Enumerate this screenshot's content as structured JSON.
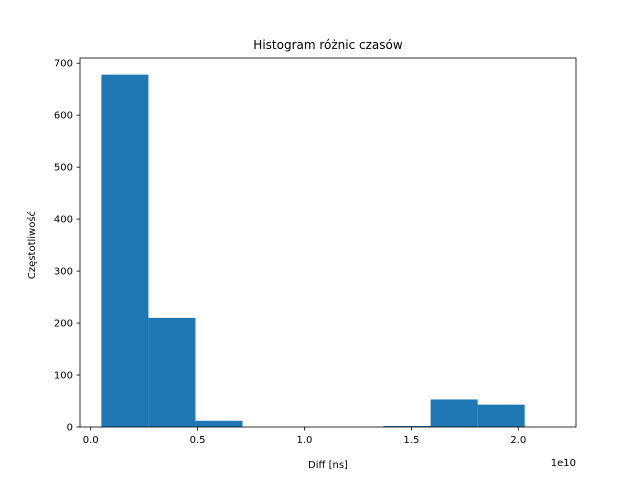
{
  "chart_data": {
    "type": "bar",
    "title": "Histogram różnic czasów",
    "xlabel": "Diff [ns]",
    "ylabel": "Częstotliwość",
    "x_offset_label": "1e10",
    "xlim": [
      -0.05,
      2.27
    ],
    "ylim": [
      0,
      710
    ],
    "x_ticks": [
      0.0,
      0.5,
      1.0,
      1.5,
      2.0
    ],
    "x_tick_labels": [
      "0.0",
      "0.5",
      "1.0",
      "1.5",
      "2.0"
    ],
    "y_ticks": [
      0,
      100,
      200,
      300,
      400,
      500,
      600,
      700
    ],
    "y_tick_labels": [
      "0",
      "100",
      "200",
      "300",
      "400",
      "500",
      "600",
      "700"
    ],
    "bar_color": "#1f77b4",
    "bins": [
      {
        "x0": 0.05,
        "x1": 0.27,
        "count": 678
      },
      {
        "x0": 0.27,
        "x1": 0.49,
        "count": 210
      },
      {
        "x0": 0.49,
        "x1": 0.71,
        "count": 12
      },
      {
        "x0": 0.71,
        "x1": 0.93,
        "count": 0
      },
      {
        "x0": 0.93,
        "x1": 1.15,
        "count": 0
      },
      {
        "x0": 1.15,
        "x1": 1.37,
        "count": 0
      },
      {
        "x0": 1.37,
        "x1": 1.59,
        "count": 2
      },
      {
        "x0": 1.59,
        "x1": 1.81,
        "count": 53
      },
      {
        "x0": 1.81,
        "x1": 2.03,
        "count": 43
      },
      {
        "x0": 2.03,
        "x1": 2.25,
        "count": 0
      }
    ],
    "grid": false,
    "legend": "none"
  }
}
